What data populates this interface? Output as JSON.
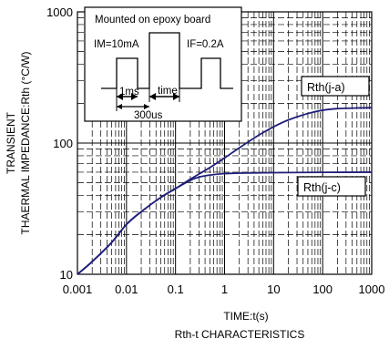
{
  "chart_data": {
    "type": "line",
    "title": "Rth-t CHARACTERISTICS",
    "xlabel": "TIME:t(s)",
    "ylabel_line1": "TRANSIENT",
    "ylabel_line2": "THAERMAL IMPEDANCE:Rth (°C/W)",
    "x_scale": "log",
    "y_scale": "log",
    "xlim": [
      0.001,
      1000
    ],
    "ylim": [
      10,
      1000
    ],
    "x_ticks": [
      "0.001",
      "0.01",
      "0.1",
      "1",
      "10",
      "100",
      "1000"
    ],
    "y_ticks": [
      "10",
      "100",
      "1000"
    ],
    "grid": true,
    "series": [
      {
        "name": "Rth(j-a)",
        "color": "#1f1f7a",
        "x": [
          0.001,
          0.002,
          0.005,
          0.01,
          0.02,
          0.05,
          0.1,
          0.2,
          0.5,
          1,
          2,
          5,
          10,
          20,
          50,
          100,
          200,
          500,
          1000
        ],
        "y": [
          10,
          12.5,
          17.5,
          24,
          30,
          38.5,
          45,
          53,
          65,
          77,
          92,
          115,
          133,
          150,
          168,
          178,
          183,
          185,
          186
        ]
      },
      {
        "name": "Rth(j-c)",
        "color": "#1f1f7a",
        "x": [
          0.001,
          0.002,
          0.005,
          0.01,
          0.02,
          0.05,
          0.1,
          0.2,
          0.3,
          0.5,
          1,
          2,
          5,
          10,
          100,
          1000
        ],
        "y": [
          10,
          12.5,
          17.5,
          24,
          30,
          38.5,
          45,
          52,
          55,
          57,
          58.5,
          59,
          59.3,
          59.5,
          59.8,
          60
        ]
      }
    ],
    "inset": {
      "title": "Mounted on epoxy board",
      "im_label": "IM=10mA",
      "if_label": "IF=0.2A",
      "t1_label": "1ms",
      "t2_label": "time",
      "t3_label": "300us"
    }
  }
}
